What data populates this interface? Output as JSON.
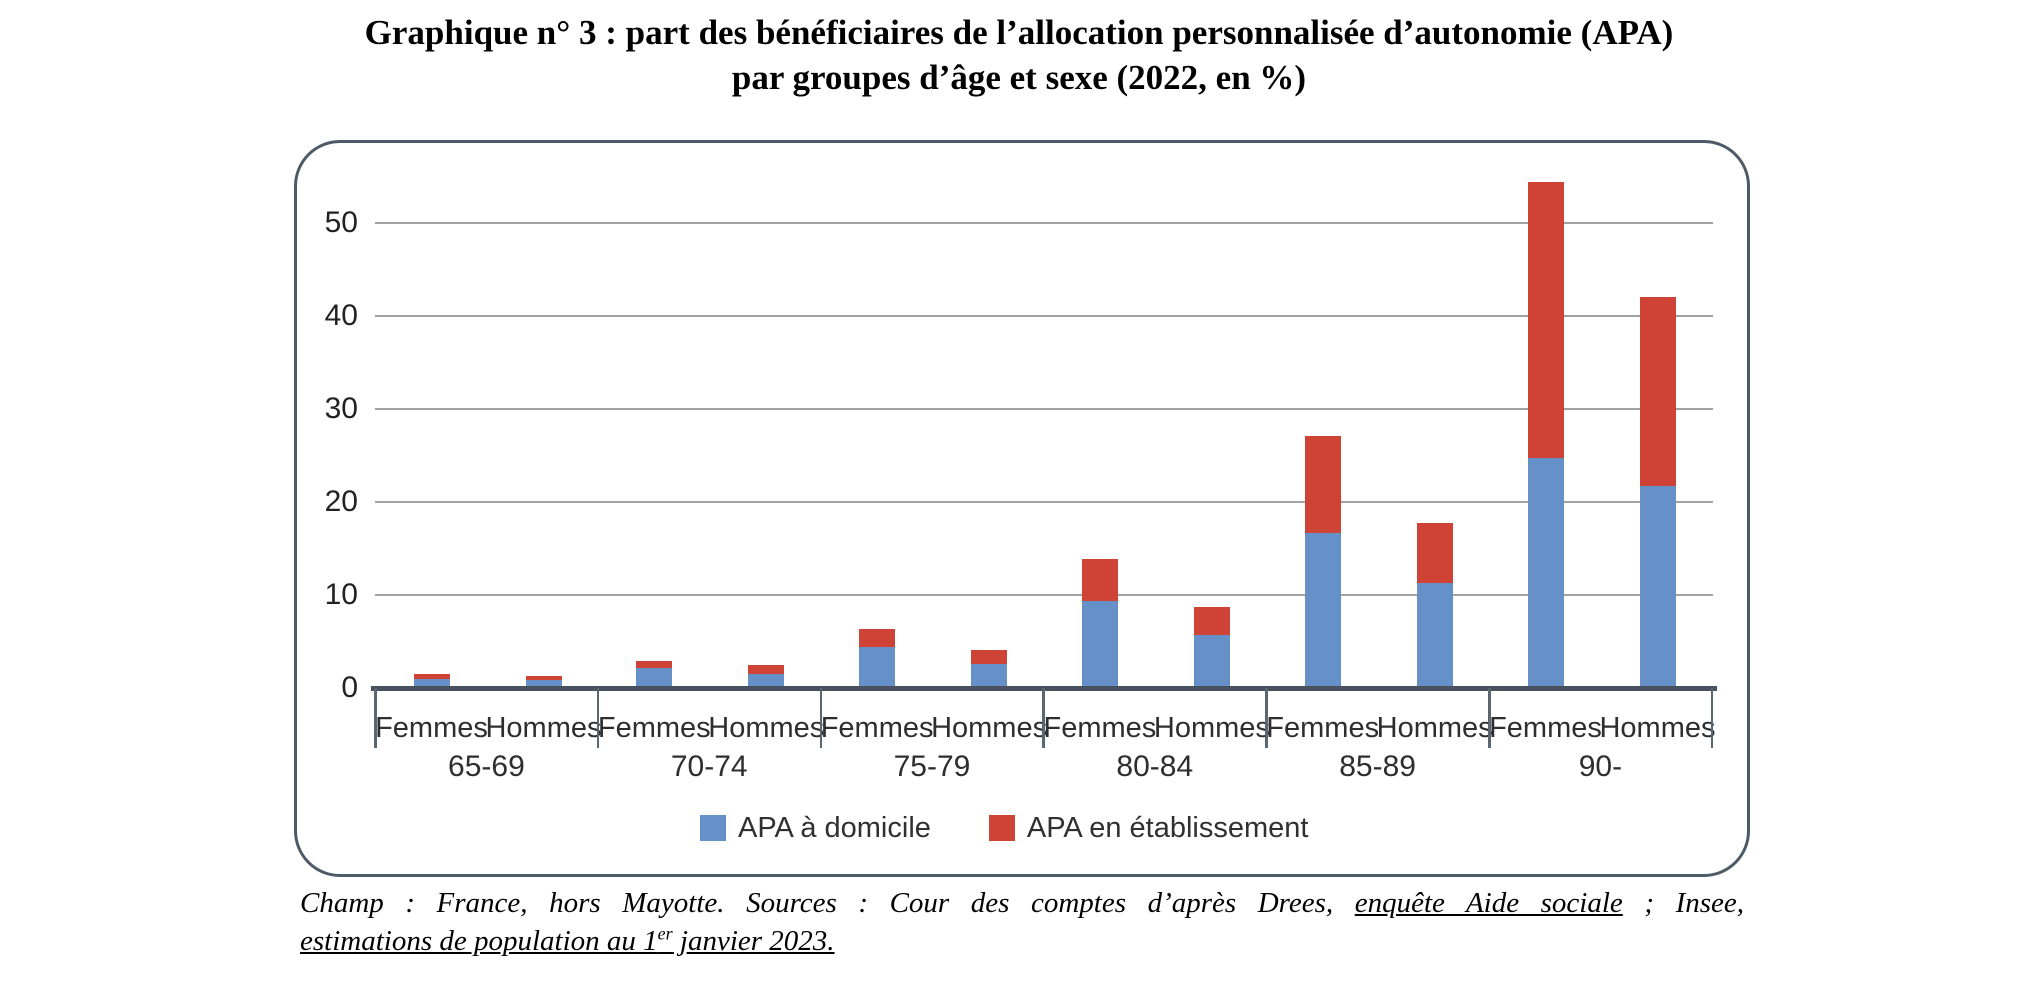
{
  "title": {
    "line1": "Graphique n° 3 : part des bénéficiaires de l’allocation personnalisée d’autonomie (APA)",
    "line2": "par groupes d’âge et sexe (2022, en %)"
  },
  "chart_data": {
    "type": "bar",
    "stacked": true,
    "title": "part des bénéficiaires de l'APA par groupes d'âge et sexe (2022, en %)",
    "categories": [
      "65-69",
      "70-74",
      "75-79",
      "80-84",
      "85-89",
      "90-"
    ],
    "sex_labels": [
      "Femmes",
      "Hommes"
    ],
    "series": [
      {
        "name": "APA à domicile",
        "color": "#6591c8",
        "values_femmes": [
          1.0,
          2.1,
          4.4,
          9.4,
          16.7,
          24.7
        ],
        "values_hommes": [
          0.9,
          1.5,
          2.6,
          5.7,
          11.3,
          21.7
        ]
      },
      {
        "name": "APA en établissement",
        "color": "#cf4336",
        "values_femmes": [
          0.5,
          0.8,
          1.9,
          4.5,
          10.4,
          29.7
        ],
        "values_hommes": [
          0.4,
          1.0,
          1.5,
          3.0,
          6.4,
          20.3
        ]
      }
    ],
    "ylim": [
      0,
      55
    ],
    "yticks": [
      0,
      10,
      20,
      30,
      40,
      50
    ],
    "grid": true,
    "legend_position": "bottom",
    "colors": {
      "axis": "#47525e",
      "separator": "#5a6672",
      "gridline": "#a2a2a2",
      "box_border": "#4d5a68"
    }
  },
  "legend": {
    "items": [
      {
        "label": "APA à domicile",
        "color": "#6591c8"
      },
      {
        "label": "APA en établissement",
        "color": "#cf4336"
      }
    ]
  },
  "footer": {
    "parts": [
      {
        "text": "Champ :  France,  hors  Mayotte.  Sources :  Cour  des  comptes  d’après  Drees,  "
      },
      {
        "text": "enquête  Aide  sociale"
      },
      {
        "text": "  ;  Insee"
      },
      {
        "text": ","
      }
    ],
    "line2_pre": "estimations de population au 1",
    "line2_sup": "er",
    "line2_post": " janvier 2023."
  }
}
